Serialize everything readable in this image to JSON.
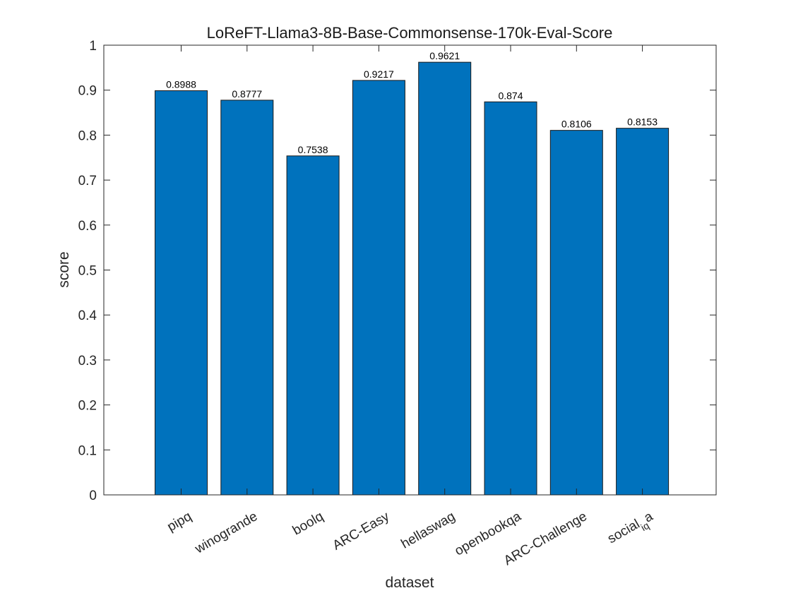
{
  "chart_data": {
    "type": "bar",
    "title": "LoReFT-Llama3-8B-Base-Commonsense-170k-Eval-Score",
    "xlabel": "dataset",
    "ylabel": "score",
    "categories": [
      {
        "main": "pipq",
        "sub": "",
        "tail": ""
      },
      {
        "main": "winogrande",
        "sub": "",
        "tail": ""
      },
      {
        "main": "boolq",
        "sub": "",
        "tail": ""
      },
      {
        "main": "ARC-Easy",
        "sub": "",
        "tail": ""
      },
      {
        "main": "hellaswag",
        "sub": "",
        "tail": ""
      },
      {
        "main": "openbookqa",
        "sub": "",
        "tail": ""
      },
      {
        "main": "ARC-Challenge",
        "sub": "",
        "tail": ""
      },
      {
        "main": "social",
        "sub": "iq",
        "tail": "a"
      }
    ],
    "values": [
      0.8988,
      0.8777,
      0.7538,
      0.9217,
      0.9621,
      0.874,
      0.8106,
      0.8153
    ],
    "value_labels": [
      "0.8988",
      "0.8777",
      "0.7538",
      "0.9217",
      "0.9621",
      "0.874",
      "0.8106",
      "0.8153"
    ],
    "ylim": [
      0,
      1
    ],
    "yticks": [
      "0",
      "0.1",
      "0.2",
      "0.3",
      "0.4",
      "0.5",
      "0.6",
      "0.7",
      "0.8",
      "0.9",
      "1"
    ],
    "bar_color": "#0072BD",
    "grid": false,
    "legend": "none"
  }
}
